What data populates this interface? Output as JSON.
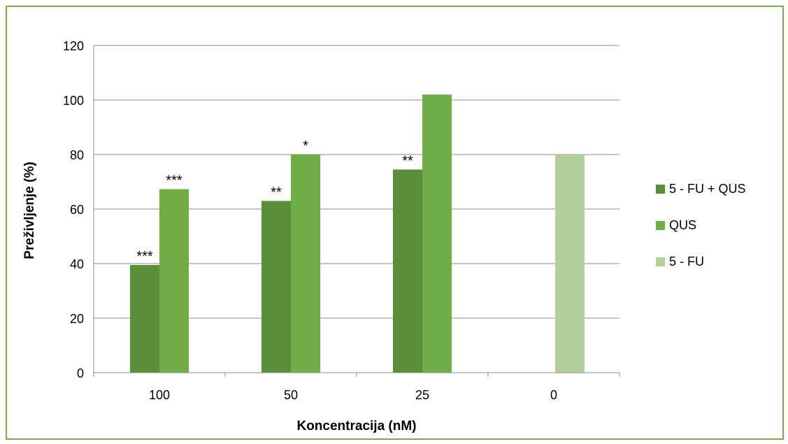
{
  "chart_data": {
    "type": "bar",
    "title": "",
    "xlabel": "Koncentracija  (nM)",
    "ylabel": "Preživljenje (%)",
    "ylim": [
      0,
      120
    ],
    "yticks": [
      "0",
      "20",
      "40",
      "60",
      "80",
      "100",
      "120"
    ],
    "categories": [
      "100",
      "50",
      "25",
      "0"
    ],
    "grid": true,
    "legend_position": "right",
    "series": [
      {
        "name": "5 - FU + QUS",
        "color": "#5a8f3a",
        "values": [
          39.5,
          63,
          74.5,
          null
        ],
        "significance": [
          "***",
          "**",
          "**",
          null
        ]
      },
      {
        "name": "QUS",
        "color": "#70ad47",
        "values": [
          67.3,
          80,
          102,
          null
        ],
        "significance": [
          "***",
          "*",
          "",
          null
        ]
      },
      {
        "name": "5 - FU",
        "color": "#b2cf9c",
        "values": [
          null,
          null,
          null,
          80
        ],
        "significance": [
          null,
          null,
          null,
          ""
        ]
      }
    ]
  }
}
